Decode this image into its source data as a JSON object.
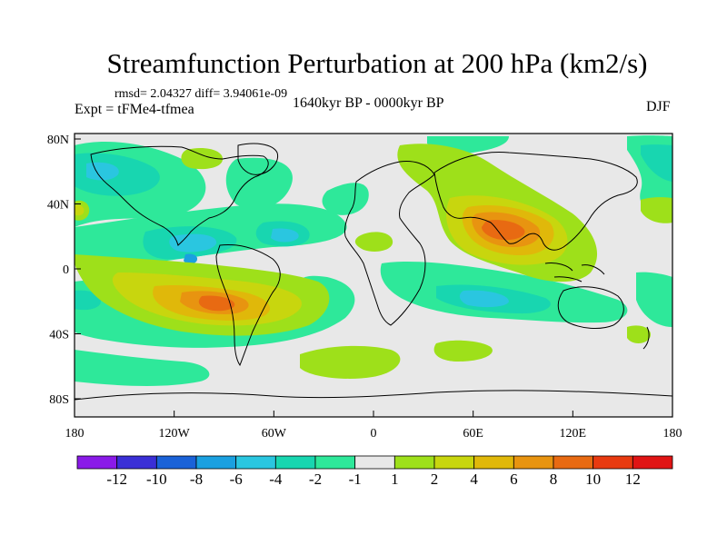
{
  "title": "Streamfunction Perturbation at 200 hPa (km2/s)",
  "stats_line": "rmsd= 2.04327 diff= 3.94061e-09",
  "experiment_line": "Expt = tFMe4-tfmea",
  "period_line": "1640kyr BP - 0000kyr BP",
  "season": "DJF",
  "lat_ticks": [
    "80N",
    "40N",
    "0",
    "40S",
    "80S"
  ],
  "lon_ticks": [
    "180",
    "120W",
    "60W",
    "0",
    "60E",
    "120E",
    "180"
  ],
  "colorbar": {
    "labels": [
      "-12",
      "-10",
      "-8",
      "-6",
      "-4",
      "-2",
      "-1",
      "1",
      "2",
      "4",
      "6",
      "8",
      "10",
      "12"
    ],
    "colors": [
      "#8a1ae8",
      "#3a2fd6",
      "#1a62d8",
      "#1aa0e0",
      "#2ac6e0",
      "#18d6b0",
      "#2ee89a",
      "#e8e8e8",
      "#9ee01a",
      "#c8d60e",
      "#e0b80a",
      "#e89410",
      "#e86a12",
      "#e83a10",
      "#e01414"
    ]
  }
}
